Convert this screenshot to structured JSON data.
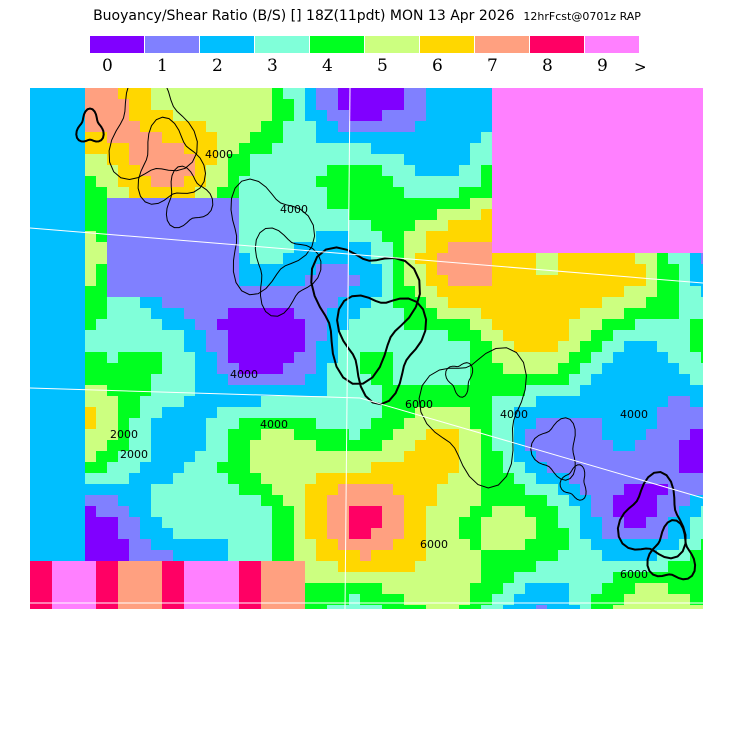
{
  "title": {
    "main": "Buoyancy/Shear Ratio (B/S) [] 18Z(11pdt) MON 13 Apr 2026",
    "forecast": "12hrFcst@0701z RAP"
  },
  "legend": {
    "colors": [
      "#8000ff",
      "#8080ff",
      "#00bfff",
      "#80ffd9",
      "#00ff20",
      "#ccff80",
      "#ffd700",
      "#ffa080",
      "#ff0064",
      "#ff80ff"
    ],
    "labels": [
      "0",
      "1",
      "2",
      "3",
      "4",
      "5",
      "6",
      "7",
      "8",
      "9"
    ],
    "overflow": ">"
  },
  "map": {
    "contour_labels": [
      "4000",
      "4000",
      "2000",
      "4000",
      "6000",
      "2000",
      "4000",
      "4000",
      "6000",
      "4000",
      "6000"
    ]
  }
}
